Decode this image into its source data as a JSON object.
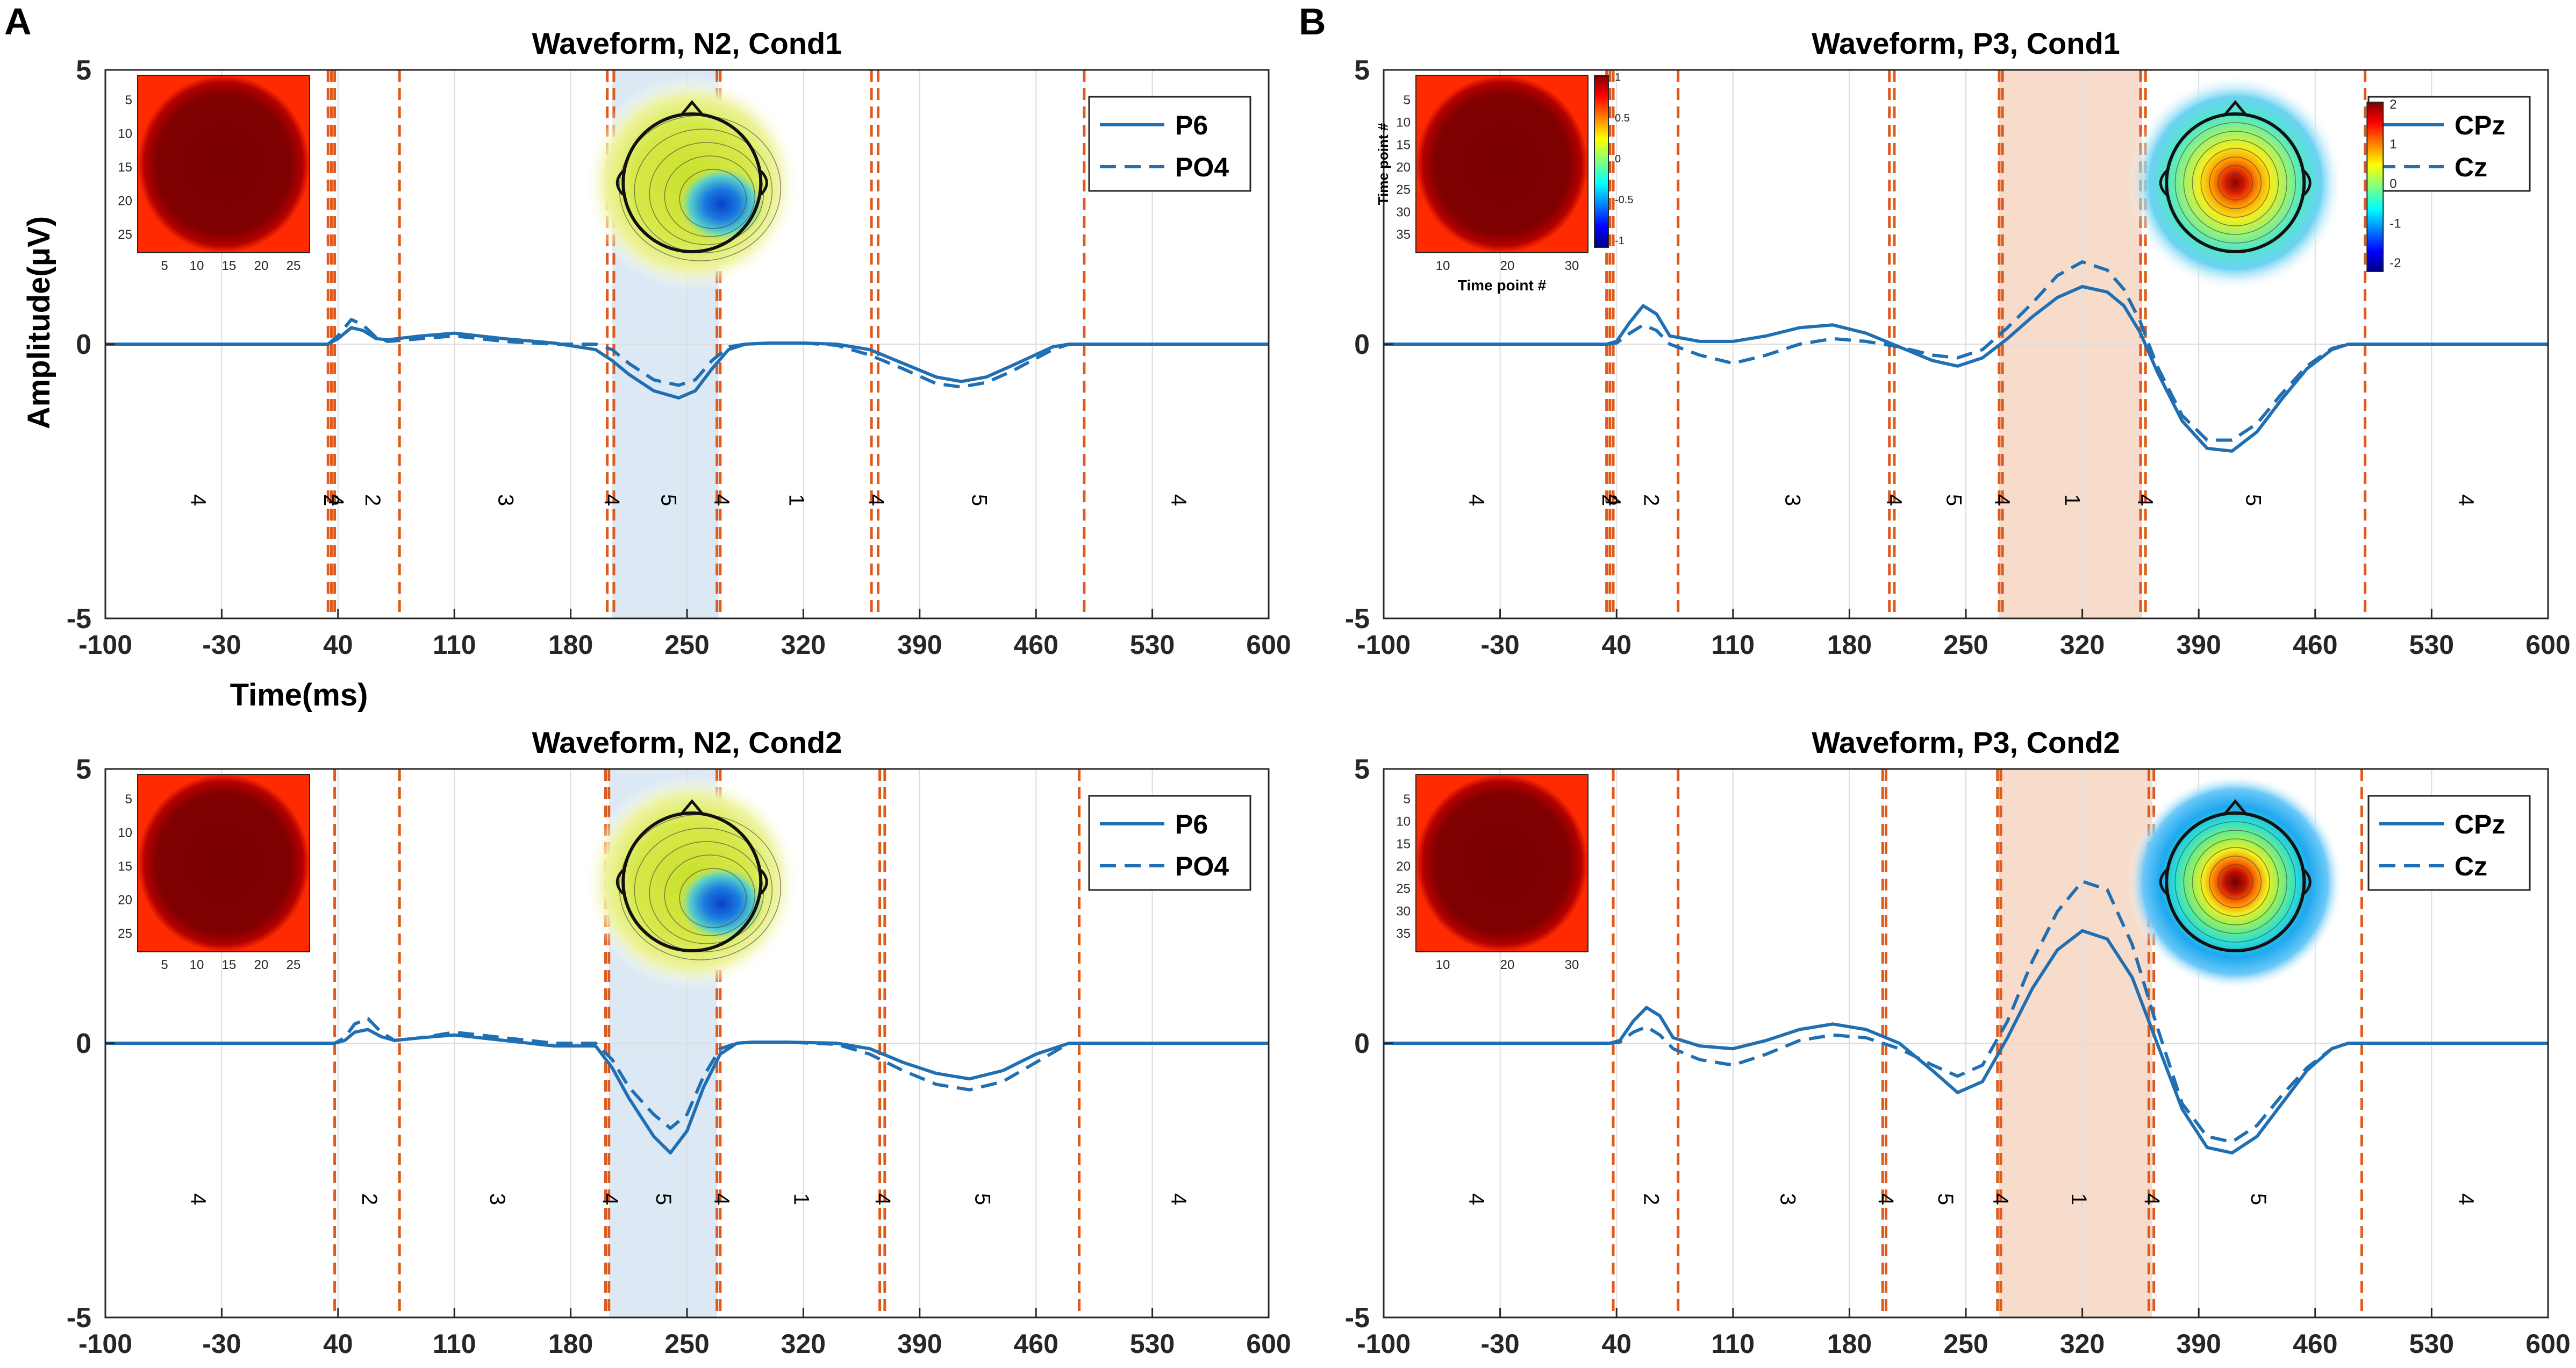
{
  "figure": {
    "panel_labels": [
      "A",
      "B"
    ],
    "ylabel": "Amplitude(μV)",
    "xlabel": "Time(ms)"
  },
  "chart_data": [
    {
      "type": "line",
      "panel": "A",
      "title": "Waveform, N2, Cond1",
      "xlim": [
        -100,
        600
      ],
      "ylim": [
        -5,
        5
      ],
      "xticks": [
        -100,
        -30,
        40,
        110,
        180,
        250,
        320,
        390,
        460,
        530,
        600
      ],
      "yticks": [
        -5,
        0,
        5
      ],
      "series": [
        {
          "name": "P6",
          "style": "solid",
          "t": [
            -100,
            -30,
            34,
            40,
            48,
            55,
            63,
            70,
            90,
            110,
            140,
            170,
            195,
            205,
            215,
            230,
            245,
            255,
            265,
            275,
            285,
            300,
            320,
            340,
            360,
            380,
            400,
            415,
            430,
            445,
            470,
            480,
            600
          ],
          "v": [
            0,
            0,
            0,
            0.1,
            0.3,
            0.25,
            0.1,
            0.08,
            0.15,
            0.2,
            0.1,
            0.02,
            -0.1,
            -0.3,
            -0.55,
            -0.85,
            -0.98,
            -0.85,
            -0.45,
            -0.1,
            0,
            0.02,
            0.02,
            0,
            -0.1,
            -0.35,
            -0.6,
            -0.68,
            -0.6,
            -0.4,
            -0.05,
            0,
            0
          ]
        },
        {
          "name": "PO4",
          "style": "dashed",
          "t": [
            -100,
            -30,
            34,
            40,
            48,
            55,
            63,
            70,
            90,
            110,
            140,
            170,
            195,
            205,
            215,
            230,
            245,
            255,
            265,
            275,
            285,
            300,
            320,
            340,
            360,
            380,
            400,
            415,
            430,
            445,
            470,
            480,
            600
          ],
          "v": [
            0,
            0,
            0,
            0.15,
            0.45,
            0.35,
            0.12,
            0.05,
            0.1,
            0.15,
            0.05,
            0,
            0,
            -0.1,
            -0.35,
            -0.65,
            -0.75,
            -0.65,
            -0.3,
            -0.05,
            0,
            0.02,
            0.02,
            -0.02,
            -0.2,
            -0.45,
            -0.72,
            -0.78,
            -0.7,
            -0.5,
            -0.1,
            0,
            0
          ]
        }
      ],
      "highlight": {
        "from": 205,
        "to": 269,
        "color": "#dce9f4"
      },
      "dashed_lines_ms": [
        34,
        36,
        38,
        77,
        202,
        206,
        268,
        270,
        361,
        365,
        489
      ],
      "segment_labels": [
        {
          "t": -45,
          "label": "4"
        },
        {
          "t": 35,
          "label": "2"
        },
        {
          "t": 38,
          "label": "4"
        },
        {
          "t": 60,
          "label": "2"
        },
        {
          "t": 140,
          "label": "3"
        },
        {
          "t": 204,
          "label": "4"
        },
        {
          "t": 238,
          "label": "5"
        },
        {
          "t": 270,
          "label": "4"
        },
        {
          "t": 315,
          "label": "1"
        },
        {
          "t": 363,
          "label": "4"
        },
        {
          "t": 425,
          "label": "5"
        },
        {
          "t": 545,
          "label": "4"
        }
      ],
      "legend": [
        "P6",
        "PO4"
      ],
      "inset": {
        "ticks": [
          "5",
          "10",
          "15",
          "20",
          "25"
        ],
        "colorbar": false
      },
      "topomap": {
        "style": "yellow",
        "extreme": "blue"
      }
    },
    {
      "type": "line",
      "panel": "B",
      "title": "Waveform, P3, Cond1",
      "xlim": [
        -100,
        600
      ],
      "ylim": [
        -5,
        5
      ],
      "xticks": [
        -100,
        -30,
        40,
        110,
        180,
        250,
        320,
        390,
        460,
        530,
        600
      ],
      "yticks": [
        -5,
        0,
        5
      ],
      "series": [
        {
          "name": "CPz",
          "style": "solid",
          "t": [
            -100,
            -30,
            34,
            40,
            48,
            56,
            64,
            72,
            90,
            110,
            130,
            150,
            170,
            190,
            210,
            230,
            245,
            260,
            275,
            290,
            305,
            320,
            335,
            345,
            355,
            365,
            380,
            395,
            410,
            425,
            440,
            455,
            470,
            480,
            600
          ],
          "v": [
            0,
            0,
            0,
            0.05,
            0.4,
            0.7,
            0.55,
            0.15,
            0.05,
            0.05,
            0.15,
            0.3,
            0.35,
            0.2,
            -0.05,
            -0.3,
            -0.4,
            -0.25,
            0.1,
            0.5,
            0.85,
            1.05,
            0.95,
            0.7,
            0.2,
            -0.5,
            -1.4,
            -1.9,
            -1.95,
            -1.6,
            -1.0,
            -0.45,
            -0.1,
            0,
            0
          ]
        },
        {
          "name": "Cz",
          "style": "dashed",
          "t": [
            -100,
            -30,
            34,
            40,
            48,
            56,
            64,
            72,
            90,
            110,
            130,
            150,
            170,
            190,
            210,
            230,
            245,
            260,
            275,
            290,
            305,
            320,
            335,
            345,
            355,
            365,
            380,
            395,
            410,
            425,
            440,
            455,
            470,
            480,
            600
          ],
          "v": [
            0,
            0,
            0,
            0.02,
            0.2,
            0.35,
            0.25,
            0,
            -0.2,
            -0.35,
            -0.2,
            0,
            0.1,
            0.05,
            -0.05,
            -0.2,
            -0.25,
            -0.1,
            0.3,
            0.75,
            1.25,
            1.5,
            1.35,
            1.0,
            0.4,
            -0.4,
            -1.3,
            -1.75,
            -1.75,
            -1.45,
            -0.9,
            -0.4,
            -0.08,
            0,
            0
          ]
        }
      ],
      "highlight": {
        "from": 270,
        "to": 356,
        "color": "#f8dccb"
      },
      "dashed_lines_ms": [
        34,
        36,
        38,
        77,
        204,
        207,
        270,
        272,
        355,
        358,
        490
      ],
      "segment_labels": [
        {
          "t": -45,
          "label": "4"
        },
        {
          "t": 35,
          "label": "2"
        },
        {
          "t": 37,
          "label": "4"
        },
        {
          "t": 60,
          "label": "2"
        },
        {
          "t": 145,
          "label": "3"
        },
        {
          "t": 206,
          "label": "4"
        },
        {
          "t": 242,
          "label": "5"
        },
        {
          "t": 271,
          "label": "4"
        },
        {
          "t": 313,
          "label": "1"
        },
        {
          "t": 357,
          "label": "4"
        },
        {
          "t": 422,
          "label": "5"
        },
        {
          "t": 550,
          "label": "4"
        }
      ],
      "legend": [
        "CPz",
        "Cz"
      ],
      "inset": {
        "ticks": [
          "5",
          "10",
          "15",
          "20",
          "25",
          "30",
          "35"
        ],
        "xticks": [
          "10",
          "20",
          "30"
        ],
        "ylabel": "Time point #",
        "xlabel": "Time point #",
        "colorbar": true,
        "colorbar_ticks": [
          "1",
          "0.5",
          "0",
          "-0.5",
          "-1"
        ]
      },
      "topomap": {
        "style": "radial",
        "extreme": "red"
      },
      "topomap_colorbar_ticks": [
        "2",
        "1",
        "0",
        "-1",
        "-2"
      ]
    },
    {
      "type": "line",
      "panel": "A",
      "title": "Waveform, N2, Cond2",
      "xlim": [
        -100,
        600
      ],
      "ylim": [
        -5,
        5
      ],
      "xticks": [
        -100,
        -30,
        40,
        110,
        180,
        250,
        320,
        390,
        460,
        530,
        600
      ],
      "yticks": [
        -5,
        0,
        5
      ],
      "series": [
        {
          "name": "P6",
          "style": "solid",
          "t": [
            -100,
            -30,
            38,
            44,
            50,
            58,
            66,
            74,
            90,
            110,
            140,
            170,
            195,
            205,
            215,
            230,
            240,
            250,
            260,
            270,
            280,
            290,
            310,
            340,
            360,
            380,
            400,
            420,
            440,
            460,
            480,
            600
          ],
          "v": [
            0,
            0,
            0,
            0.05,
            0.2,
            0.25,
            0.12,
            0.05,
            0.1,
            0.15,
            0.05,
            -0.05,
            -0.05,
            -0.45,
            -1.0,
            -1.7,
            -2.0,
            -1.6,
            -0.8,
            -0.2,
            0,
            0.02,
            0.02,
            0,
            -0.1,
            -0.35,
            -0.55,
            -0.65,
            -0.5,
            -0.2,
            0,
            0
          ]
        },
        {
          "name": "PO4",
          "style": "dashed",
          "t": [
            -100,
            -30,
            38,
            44,
            50,
            58,
            66,
            74,
            90,
            110,
            140,
            170,
            195,
            205,
            215,
            230,
            240,
            250,
            260,
            270,
            280,
            290,
            310,
            340,
            360,
            380,
            400,
            420,
            440,
            460,
            480,
            600
          ],
          "v": [
            0,
            0,
            0,
            0.1,
            0.35,
            0.45,
            0.2,
            0.05,
            0.1,
            0.2,
            0.1,
            0,
            0,
            -0.3,
            -0.8,
            -1.3,
            -1.55,
            -1.3,
            -0.6,
            -0.1,
            0,
            0.02,
            0.02,
            -0.02,
            -0.2,
            -0.5,
            -0.75,
            -0.85,
            -0.7,
            -0.35,
            0,
            0
          ]
        }
      ],
      "highlight": {
        "from": 203,
        "to": 268,
        "color": "#dce9f4"
      },
      "dashed_lines_ms": [
        38,
        77,
        201,
        203,
        268,
        270,
        366,
        369,
        486
      ],
      "segment_labels": [
        {
          "t": -45,
          "label": "4"
        },
        {
          "t": 58,
          "label": "2"
        },
        {
          "t": 135,
          "label": "3"
        },
        {
          "t": 203,
          "label": "4"
        },
        {
          "t": 235,
          "label": "5"
        },
        {
          "t": 270,
          "label": "4"
        },
        {
          "t": 318,
          "label": "1"
        },
        {
          "t": 367,
          "label": "4"
        },
        {
          "t": 427,
          "label": "5"
        },
        {
          "t": 545,
          "label": "4"
        }
      ],
      "legend": [
        "P6",
        "PO4"
      ],
      "inset": {
        "ticks": [
          "5",
          "10",
          "15",
          "20",
          "25"
        ],
        "colorbar": false
      },
      "topomap": {
        "style": "yellow",
        "extreme": "blue"
      }
    },
    {
      "type": "line",
      "panel": "B",
      "title": "Waveform, P3, Cond2",
      "xlim": [
        -100,
        600
      ],
      "ylim": [
        -5,
        5
      ],
      "xticks": [
        -100,
        -30,
        40,
        110,
        180,
        250,
        320,
        390,
        460,
        530,
        600
      ],
      "yticks": [
        -5,
        0,
        5
      ],
      "series": [
        {
          "name": "CPz",
          "style": "solid",
          "t": [
            -100,
            -30,
            36,
            42,
            50,
            58,
            66,
            74,
            90,
            110,
            130,
            150,
            170,
            190,
            210,
            230,
            245,
            260,
            275,
            290,
            305,
            320,
            335,
            350,
            365,
            380,
            395,
            410,
            425,
            440,
            455,
            470,
            480,
            600
          ],
          "v": [
            0,
            0,
            0,
            0.05,
            0.4,
            0.65,
            0.5,
            0.1,
            -0.05,
            -0.1,
            0.05,
            0.25,
            0.35,
            0.25,
            0,
            -0.5,
            -0.9,
            -0.7,
            0.1,
            1.0,
            1.7,
            2.05,
            1.9,
            1.2,
            0.0,
            -1.2,
            -1.9,
            -2.0,
            -1.7,
            -1.1,
            -0.5,
            -0.1,
            0,
            0
          ]
        },
        {
          "name": "Cz",
          "style": "dashed",
          "t": [
            -100,
            -30,
            36,
            42,
            50,
            58,
            66,
            74,
            90,
            110,
            130,
            150,
            170,
            190,
            210,
            230,
            245,
            260,
            275,
            290,
            305,
            320,
            335,
            350,
            365,
            380,
            395,
            410,
            425,
            440,
            455,
            470,
            480,
            600
          ],
          "v": [
            0,
            0,
            0,
            0.02,
            0.2,
            0.3,
            0.15,
            -0.1,
            -0.3,
            -0.4,
            -0.2,
            0.05,
            0.15,
            0.1,
            -0.1,
            -0.4,
            -0.6,
            -0.4,
            0.4,
            1.5,
            2.4,
            2.95,
            2.8,
            1.8,
            0.3,
            -1.1,
            -1.7,
            -1.8,
            -1.5,
            -0.95,
            -0.45,
            -0.1,
            0,
            0
          ]
        }
      ],
      "highlight": {
        "from": 270,
        "to": 362,
        "color": "#f8dccb"
      },
      "dashed_lines_ms": [
        38,
        77,
        200,
        202,
        269,
        271,
        360,
        363,
        488
      ],
      "segment_labels": [
        {
          "t": -45,
          "label": "4"
        },
        {
          "t": 60,
          "label": "2"
        },
        {
          "t": 142,
          "label": "3"
        },
        {
          "t": 201,
          "label": "4"
        },
        {
          "t": 237,
          "label": "5"
        },
        {
          "t": 270,
          "label": "4"
        },
        {
          "t": 317,
          "label": "1"
        },
        {
          "t": 361,
          "label": "4"
        },
        {
          "t": 425,
          "label": "5"
        },
        {
          "t": 550,
          "label": "4"
        }
      ],
      "legend": [
        "CPz",
        "Cz"
      ],
      "inset": {
        "ticks": [
          "5",
          "10",
          "15",
          "20",
          "25",
          "30",
          "35"
        ],
        "xticks": [
          "10",
          "20",
          "30"
        ],
        "colorbar": false
      },
      "topomap": {
        "style": "radial",
        "extreme": "red"
      }
    }
  ]
}
